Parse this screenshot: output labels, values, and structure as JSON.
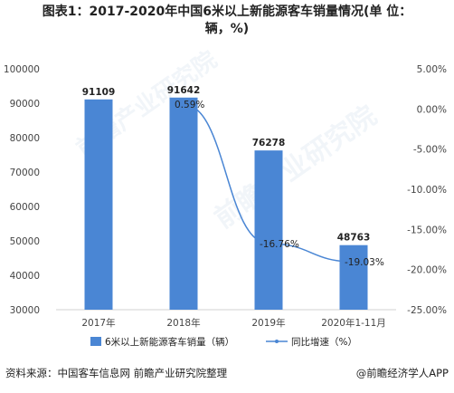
{
  "title_line1": "图表1：2017-2020年中国6米以上新能源客车销量情况(单 位：",
  "title_line2": "辆，%)",
  "source": "资料来源：中国客车信息网 前瞻产业研究院整理",
  "brand": "@前瞻经济学人APP",
  "watermark": "前瞻产业研究院",
  "colors": {
    "bar": "#4a86d4",
    "line": "#4a86d4",
    "axis": "#d0d0d0",
    "text": "#444444"
  },
  "chart_data": {
    "type": "bar",
    "categories": [
      "2017年",
      "2018年",
      "2019年",
      "2020年1-11月"
    ],
    "series": [
      {
        "name": "6米以上新能源客车销量（辆）",
        "type": "bar",
        "axis": "left",
        "values": [
          91109,
          91642,
          76278,
          48763
        ],
        "labels": [
          "91109",
          "91642",
          "76278",
          "48763"
        ]
      },
      {
        "name": "同比增速（%）",
        "type": "line",
        "axis": "right",
        "values": [
          null,
          0.59,
          -16.76,
          -19.03
        ],
        "labels": [
          "",
          "0.59%",
          "-16.76%",
          "-19.03%"
        ]
      }
    ],
    "y_left": {
      "min": 30000,
      "max": 100000,
      "step": 10000,
      "ticks": [
        "30000",
        "40000",
        "50000",
        "60000",
        "70000",
        "80000",
        "90000",
        "100000"
      ]
    },
    "y_right": {
      "min": -25,
      "max": 5,
      "step": 5,
      "ticks": [
        "-25.00%",
        "-20.00%",
        "-15.00%",
        "-10.00%",
        "-5.00%",
        "0.00%",
        "5.00%"
      ]
    },
    "legend_position": "bottom",
    "grid": false
  }
}
